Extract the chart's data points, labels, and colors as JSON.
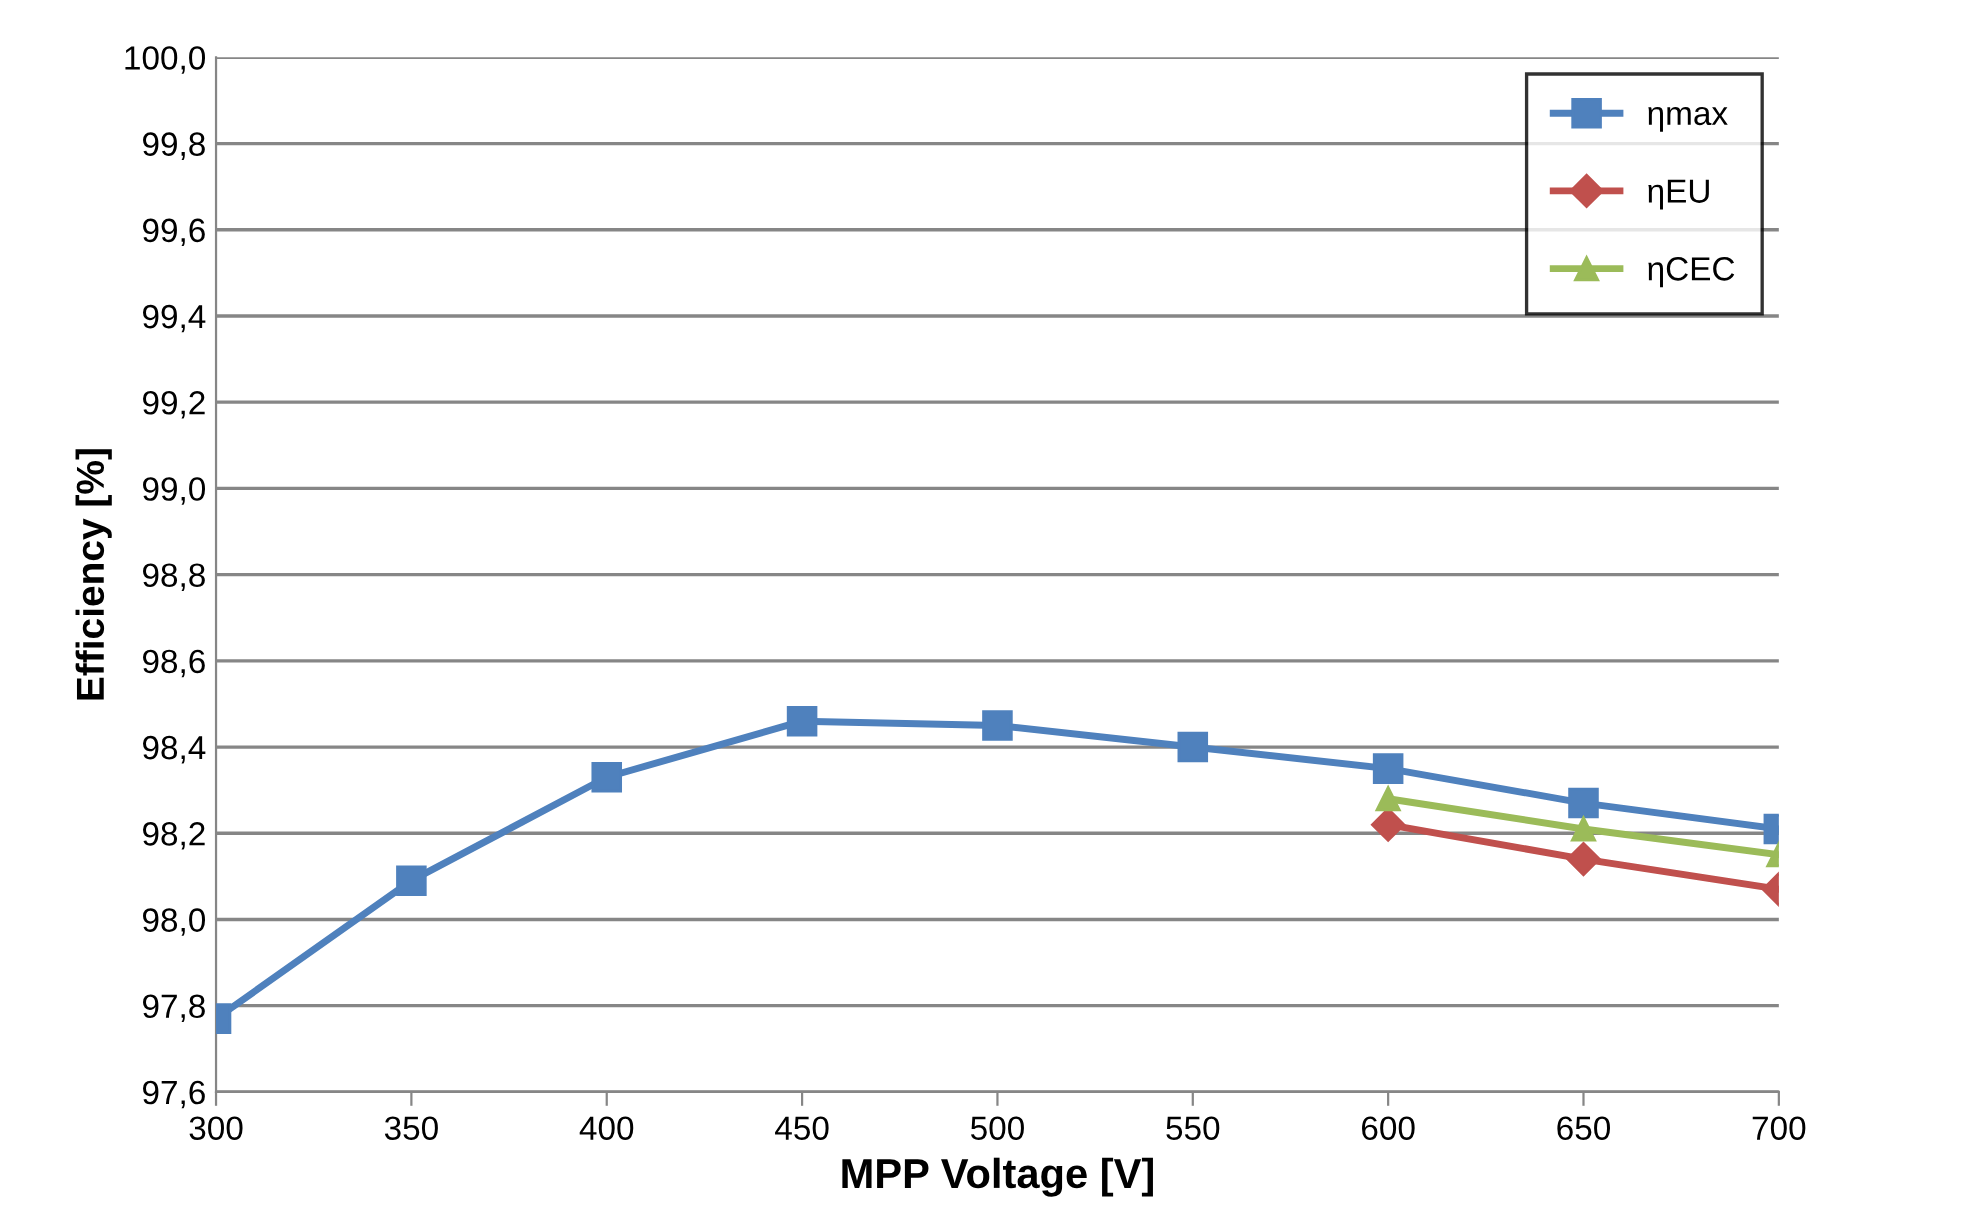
{
  "chart_data": {
    "type": "line",
    "xlabel": "MPP Voltage [V]",
    "ylabel": "Efficiency [%]",
    "x": [
      300,
      350,
      400,
      450,
      500,
      550,
      600,
      650,
      700
    ],
    "series": [
      {
        "name": "ηmax",
        "color": "#4f81bd",
        "marker": "square",
        "values": [
          97.77,
          98.09,
          98.33,
          98.46,
          98.45,
          98.4,
          98.35,
          98.27,
          98.21
        ]
      },
      {
        "name": "ηEU",
        "color": "#c0504d",
        "marker": "diamond",
        "values": [
          null,
          null,
          null,
          null,
          null,
          null,
          98.22,
          98.14,
          98.07
        ]
      },
      {
        "name": "ηCEC",
        "color": "#9bbb59",
        "marker": "triangle",
        "values": [
          null,
          null,
          null,
          null,
          null,
          null,
          98.28,
          98.21,
          98.15
        ]
      }
    ],
    "xlim": [
      300,
      700
    ],
    "xticks": [
      300,
      350,
      400,
      450,
      500,
      550,
      600,
      650,
      700
    ],
    "ylim": [
      97.6,
      100.0
    ],
    "yticks": [
      {
        "value": 97.6,
        "label": "97,6"
      },
      {
        "value": 97.8,
        "label": "97,8"
      },
      {
        "value": 98.0,
        "label": "98,0"
      },
      {
        "value": 98.2,
        "label": "98,2"
      },
      {
        "value": 98.4,
        "label": "98,4"
      },
      {
        "value": 98.6,
        "label": "98,6"
      },
      {
        "value": 98.8,
        "label": "98,8"
      },
      {
        "value": 99.0,
        "label": "99,0"
      },
      {
        "value": 99.2,
        "label": "99,2"
      },
      {
        "value": 99.4,
        "label": "99,4"
      },
      {
        "value": 99.6,
        "label": "99,6"
      },
      {
        "value": 99.8,
        "label": "99,8"
      },
      {
        "value": 100.0,
        "label": "100,0"
      }
    ],
    "grid": "y",
    "legend": "top right",
    "line_style": "solid"
  }
}
